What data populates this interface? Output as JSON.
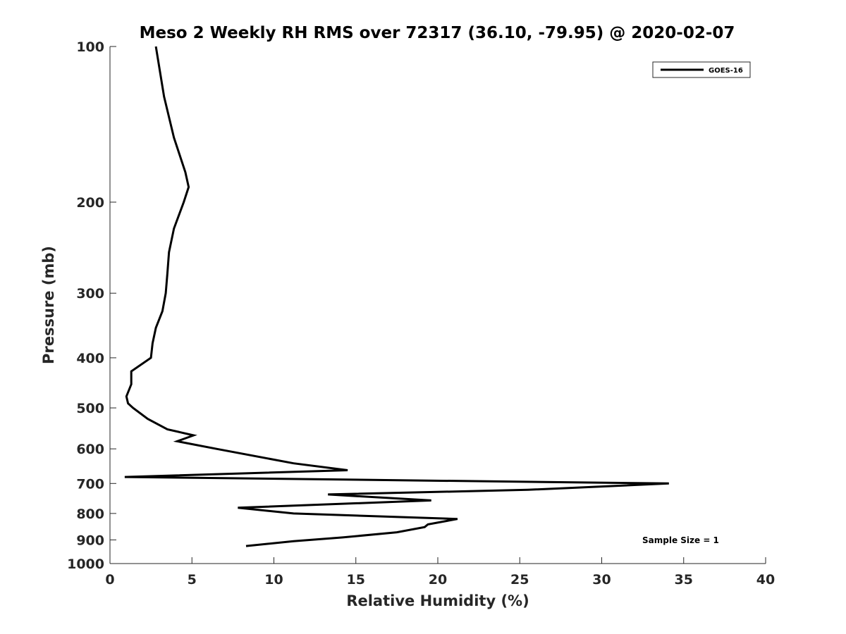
{
  "chart_data": {
    "type": "line",
    "title": "Meso 2 Weekly RH RMS over 72317 (36.10, -79.95) @ 2020-02-07",
    "xlabel": "Relative Humidity (%)",
    "ylabel": "Pressure (mb)",
    "xlim": [
      0,
      40
    ],
    "ylim": [
      100,
      1000
    ],
    "y_scale": "log",
    "y_reversed": true,
    "xticks": [
      0,
      5,
      10,
      15,
      20,
      25,
      30,
      35,
      40
    ],
    "xtick_labels": [
      "0",
      "5",
      "10",
      "15",
      "20",
      "25",
      "30",
      "35",
      "40"
    ],
    "yticks": [
      100,
      200,
      300,
      400,
      500,
      600,
      700,
      800,
      900,
      1000
    ],
    "ytick_labels": [
      "100",
      "200",
      "300",
      "400",
      "500",
      "600",
      "700",
      "800",
      "900",
      "1000"
    ],
    "grid": false,
    "legend_position": "top-right",
    "annotation": "Sample Size = 1",
    "series": [
      {
        "name": "GOES-16",
        "color": "#000000",
        "points": [
          [
            2.8,
            100
          ],
          [
            3.3,
            125
          ],
          [
            3.9,
            150
          ],
          [
            4.6,
            175
          ],
          [
            4.8,
            187
          ],
          [
            4.5,
            200
          ],
          [
            3.9,
            225
          ],
          [
            3.6,
            250
          ],
          [
            3.5,
            275
          ],
          [
            3.4,
            300
          ],
          [
            3.2,
            325
          ],
          [
            2.8,
            350
          ],
          [
            2.6,
            375
          ],
          [
            2.5,
            400
          ],
          [
            1.3,
            425
          ],
          [
            1.3,
            450
          ],
          [
            1.0,
            475
          ],
          [
            1.1,
            490
          ],
          [
            1.4,
            500
          ],
          [
            2.3,
            525
          ],
          [
            3.5,
            550
          ],
          [
            5.1,
            565
          ],
          [
            4.1,
            580
          ],
          [
            6.5,
            600
          ],
          [
            11.2,
            640
          ],
          [
            14.5,
            660
          ],
          [
            0.9,
            680
          ],
          [
            34.1,
            700
          ],
          [
            25.5,
            720
          ],
          [
            13.3,
            735
          ],
          [
            19.6,
            755
          ],
          [
            7.8,
            780
          ],
          [
            11.2,
            800
          ],
          [
            21.2,
            820
          ],
          [
            19.4,
            840
          ],
          [
            19.2,
            850
          ],
          [
            17.5,
            870
          ],
          [
            14.2,
            890
          ],
          [
            11.2,
            905
          ],
          [
            8.3,
            925
          ]
        ]
      }
    ]
  }
}
